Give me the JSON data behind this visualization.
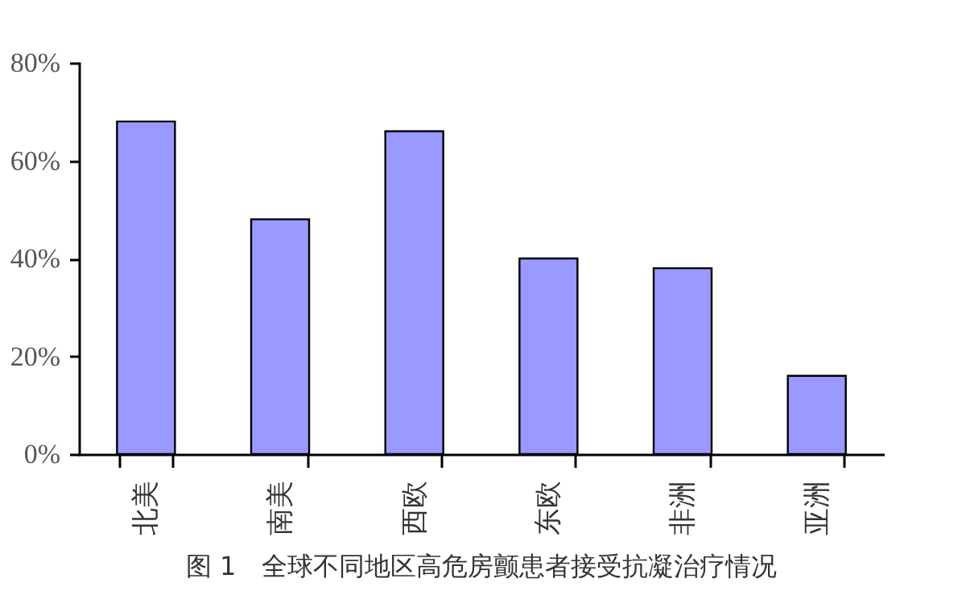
{
  "chart_data": {
    "type": "bar",
    "title": "图 1　全球不同地区高危房颤患者接受抗凝治疗情况",
    "categories": [
      "北美",
      "南美",
      "西欧",
      "东欧",
      "非洲",
      "亚洲"
    ],
    "values": [
      68,
      48,
      66,
      40,
      38,
      16
    ],
    "color": "#9999ff",
    "ylim": [
      0,
      80
    ],
    "yticks": [
      {
        "value": 0,
        "label": "0%"
      },
      {
        "value": 20,
        "label": "20%"
      },
      {
        "value": 40,
        "label": "40%"
      },
      {
        "value": 60,
        "label": "60%"
      },
      {
        "value": 80,
        "label": "80%"
      }
    ],
    "grid": false
  }
}
